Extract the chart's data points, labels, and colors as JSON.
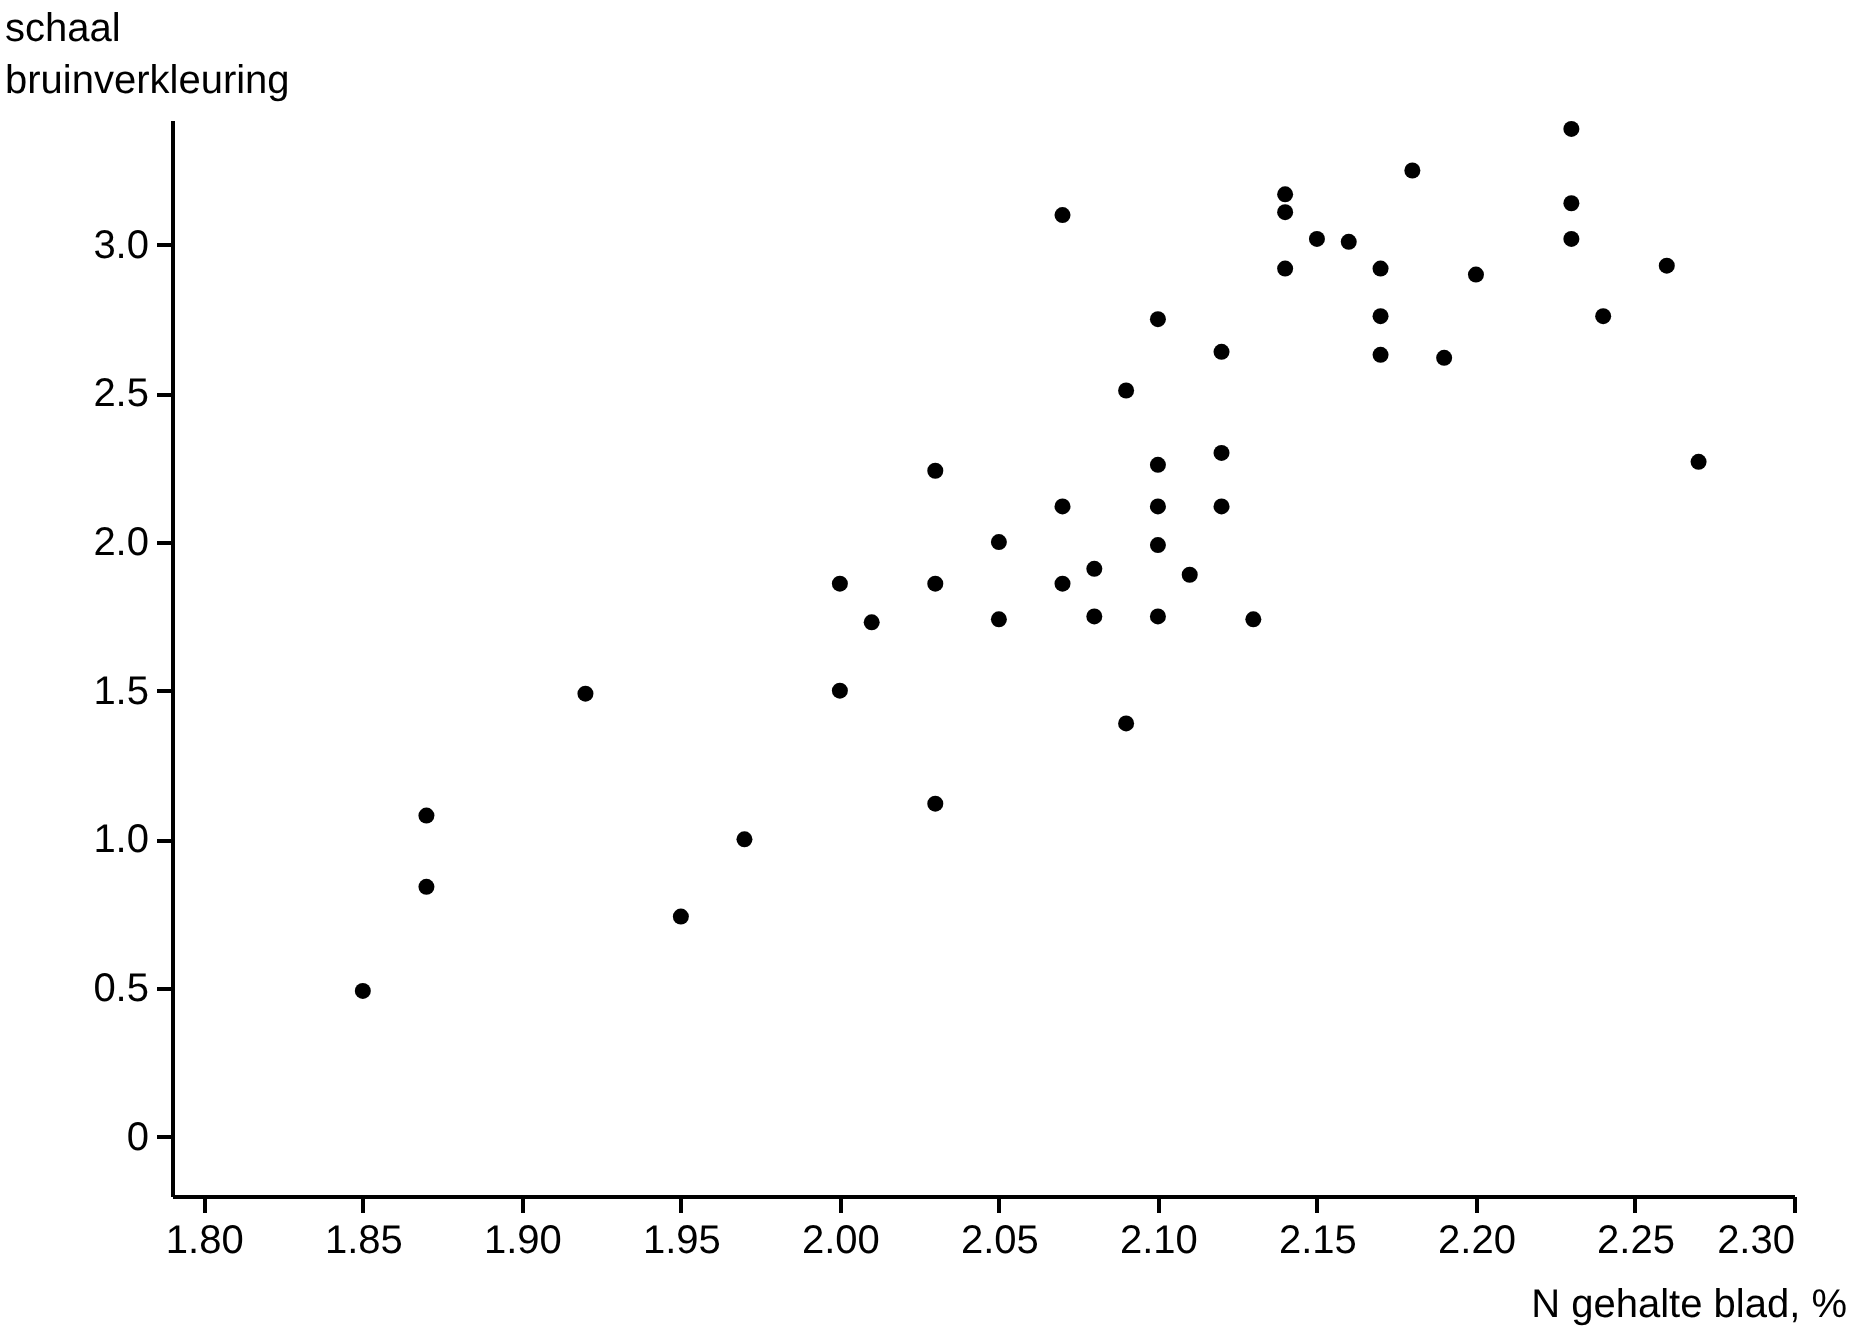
{
  "chart_data": {
    "type": "scatter",
    "xlabel": "N gehalte blad, %",
    "ylabel": "schaal bruinverkleuring",
    "x": [
      1.85,
      1.87,
      1.87,
      1.92,
      1.95,
      1.97,
      2.0,
      2.0,
      2.01,
      2.03,
      2.03,
      2.03,
      2.05,
      2.05,
      2.07,
      2.07,
      2.07,
      2.08,
      2.08,
      2.09,
      2.09,
      2.1,
      2.1,
      2.1,
      2.1,
      2.1,
      2.11,
      2.12,
      2.12,
      2.12,
      2.13,
      2.14,
      2.14,
      2.14,
      2.15,
      2.16,
      2.17,
      2.17,
      2.17,
      2.18,
      2.19,
      2.2,
      2.23,
      2.23,
      2.23,
      2.24,
      2.26,
      2.27
    ],
    "series": [
      {
        "color": "#000000",
        "values": [
          0.49,
          1.08,
          0.84,
          1.49,
          0.74,
          1.0,
          1.86,
          1.5,
          1.73,
          2.24,
          1.86,
          1.12,
          2.0,
          1.74,
          3.1,
          2.12,
          1.86,
          1.91,
          1.75,
          2.51,
          1.39,
          2.75,
          2.26,
          2.12,
          1.99,
          1.75,
          1.89,
          2.64,
          2.3,
          2.12,
          1.74,
          3.17,
          3.11,
          2.92,
          3.02,
          3.01,
          2.92,
          2.76,
          2.63,
          3.25,
          2.62,
          2.9,
          3.39,
          3.14,
          3.02,
          2.76,
          2.93,
          2.27
        ]
      }
    ],
    "xlim": [
      1.79,
      2.3
    ],
    "ylim": [
      -0.2,
      3.42
    ],
    "xticks": [
      {
        "value": 1.8,
        "label": "1.80"
      },
      1.85,
      {
        "value": 1.9,
        "label": "1.90"
      },
      1.95,
      {
        "value": 2.0,
        "label": "2.00"
      },
      2.05,
      {
        "value": 2.1,
        "label": "2.10"
      },
      2.15,
      {
        "value": 2.2,
        "label": "2.20"
      },
      2.25,
      {
        "value": 2.3,
        "label": "2.30"
      }
    ],
    "yticks": [
      0,
      0.5,
      {
        "value": 1,
        "label": "1.0"
      },
      1.5,
      {
        "value": 2,
        "label": "2.0"
      },
      2.5,
      {
        "value": 3,
        "label": "3.0"
      }
    ],
    "grid": false,
    "legend": false,
    "marker": "circle"
  }
}
